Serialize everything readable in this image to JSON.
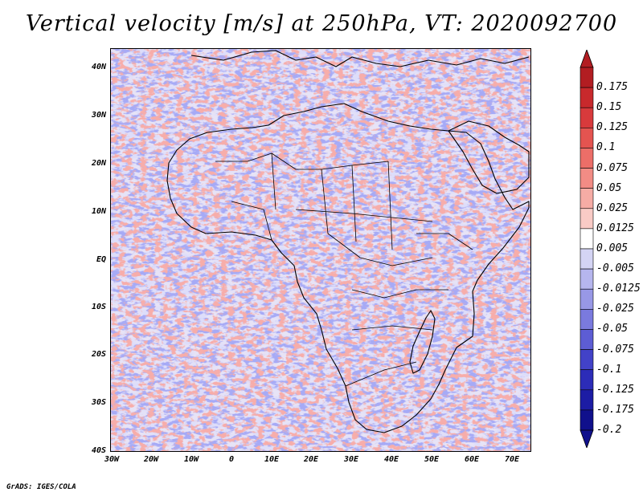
{
  "title": "Vertical velocity [m/s] at 250hPa, VT: 2020092700",
  "credit": "GrADS: IGES/COLA",
  "map": {
    "region": "Africa",
    "lon_range": [
      -30,
      76
    ],
    "lat_range": [
      -40,
      46
    ],
    "lat_ticks": [
      "40N",
      "30N",
      "20N",
      "10N",
      "EQ",
      "10S",
      "20S",
      "30S",
      "40S"
    ],
    "lon_ticks": [
      "30W",
      "20W",
      "10W",
      "0",
      "10E",
      "20E",
      "30E",
      "40E",
      "50E",
      "60E",
      "70E"
    ]
  },
  "colorbar": {
    "labels": [
      "0.175",
      "0.15",
      "0.125",
      "0.1",
      "0.075",
      "0.05",
      "0.025",
      "0.0125",
      "0.005",
      "-0.005",
      "-0.0125",
      "-0.025",
      "-0.05",
      "-0.075",
      "-0.1",
      "-0.125",
      "-0.175",
      "-0.2"
    ],
    "colors": [
      "#b21d22",
      "#c8292c",
      "#d83a3c",
      "#e45450",
      "#ec6e68",
      "#f28c85",
      "#f6aca5",
      "#f9cbc6",
      "#ffffff",
      "#d4d4f4",
      "#b6b6ee",
      "#9898e6",
      "#7a7ade",
      "#5d5dd4",
      "#4242c8",
      "#2c2cb8",
      "#1c1ca4",
      "#10108c"
    ],
    "top_arrow_color": "#b21d22",
    "bottom_arrow_color": "#10108c"
  }
}
